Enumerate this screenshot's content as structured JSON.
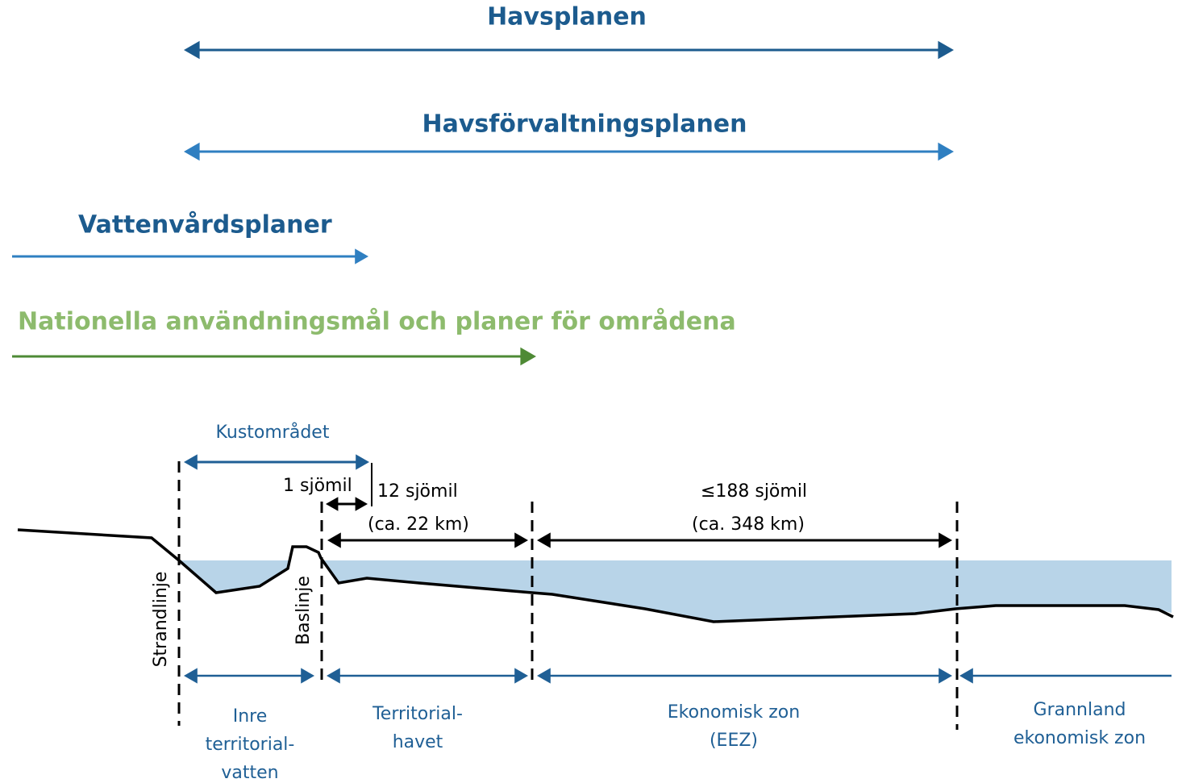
{
  "plans": {
    "havsplanen": "Havsplanen",
    "havsforvaltningsplanen": "Havsförvaltningsplanen",
    "vattenvardsplaner": "Vattenvårdsplaner",
    "nationella": "Nationella användningsmål och planer för områdena"
  },
  "dimensions": {
    "kustomradet": "Kustområdet",
    "one_nm": "1 sjömil",
    "twelve_nm": "12 sjömil",
    "twelve_km": "(ca. 22 km)",
    "eez_nm": "≤188 sjömil",
    "eez_km": "(ca. 348 km)"
  },
  "lines": {
    "strandlinje": "Strandlinje",
    "baslinje": "Baslinje"
  },
  "zones": {
    "inre": [
      "Inre",
      "territorial-",
      "vatten"
    ],
    "territorial": [
      "Territorial-",
      "havet"
    ],
    "ekonomisk": [
      "Ekonomisk zon",
      "(EEZ)"
    ],
    "grannland": [
      "Grannland",
      "ekonomisk zon"
    ]
  }
}
